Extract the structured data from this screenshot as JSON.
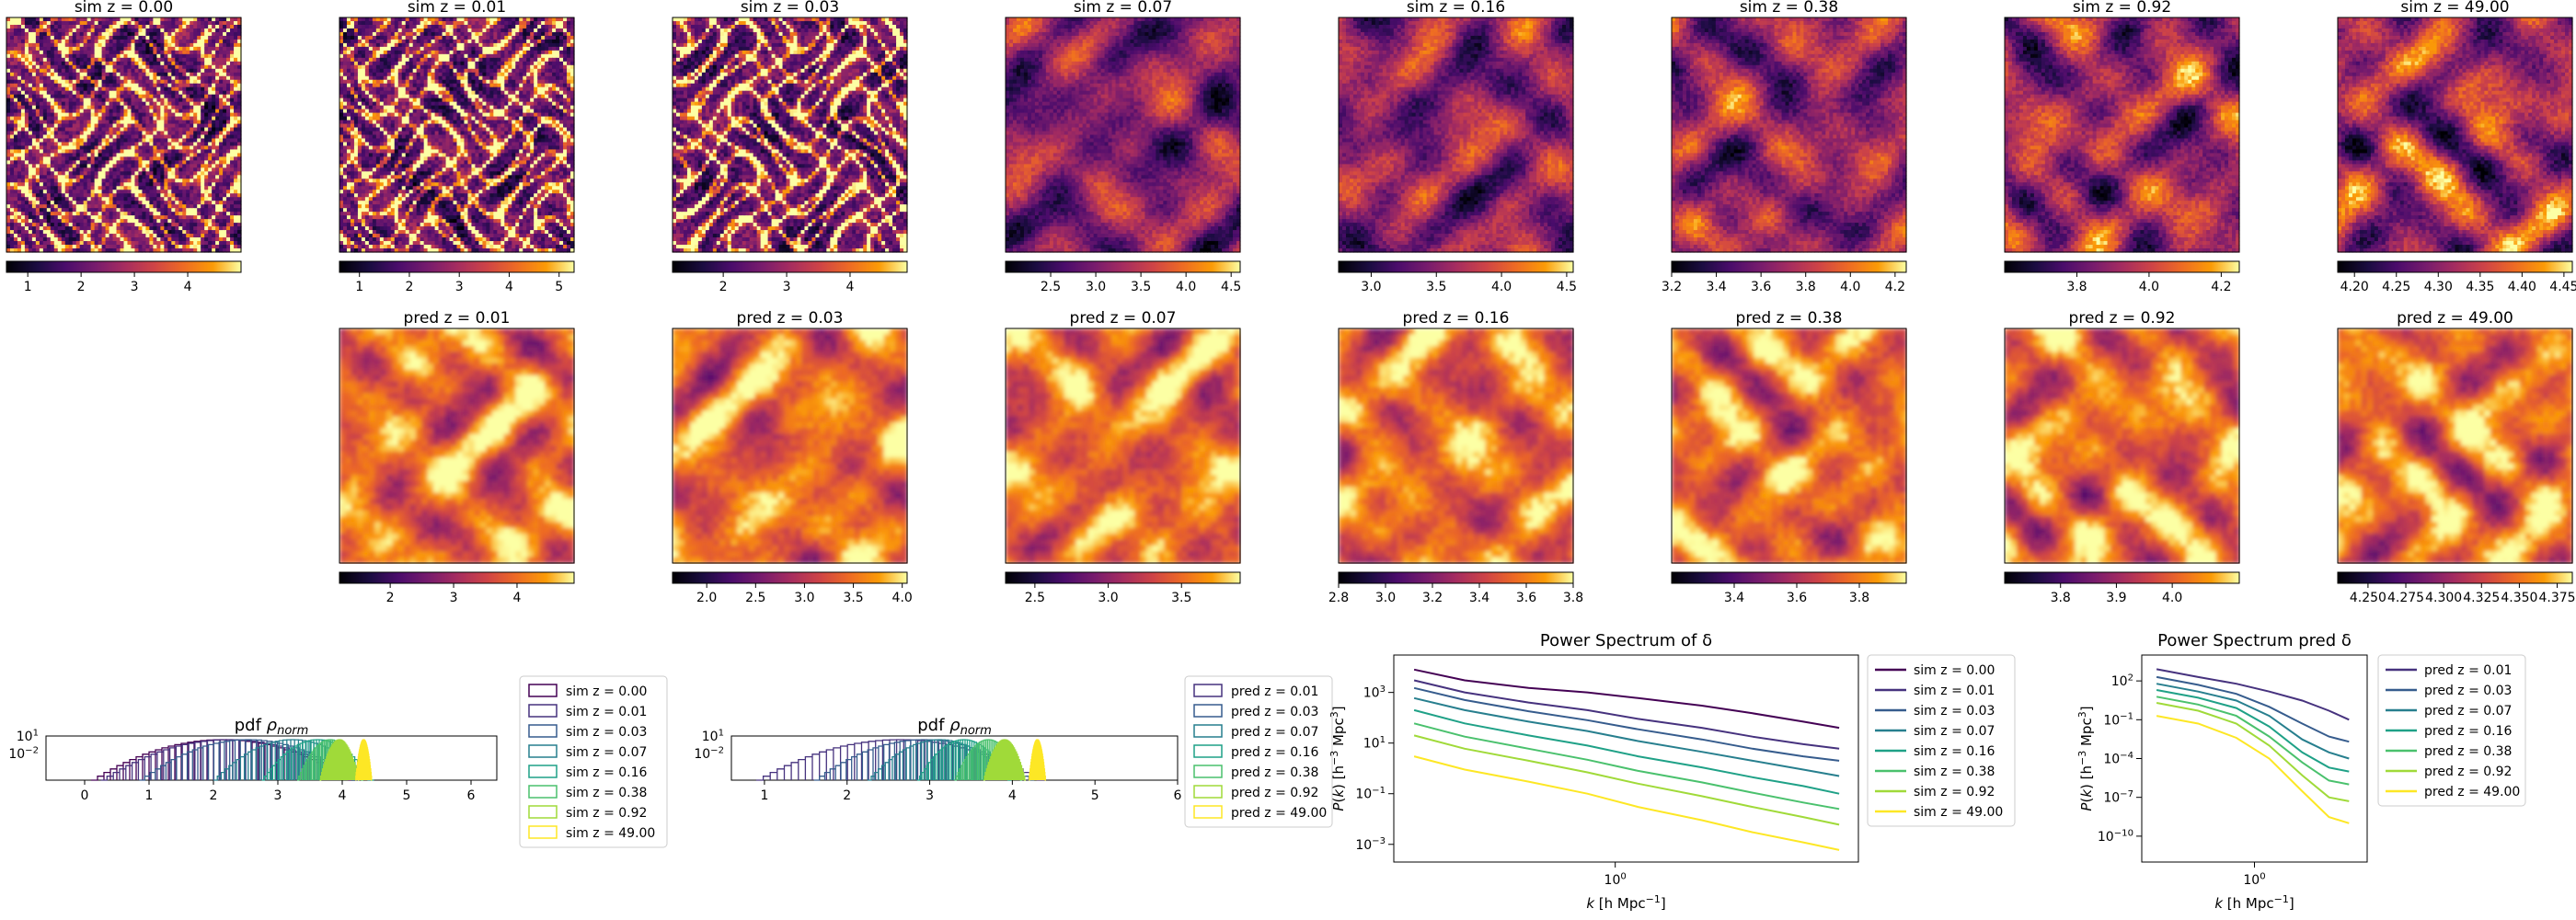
{
  "sim_row": [
    {
      "title": "sim z = 0.00",
      "colorbar": {
        "ticks": [
          "1",
          "2",
          "3",
          "4"
        ],
        "range": [
          0.6,
          5.0
        ]
      }
    },
    {
      "title": "sim z = 0.01",
      "colorbar": {
        "ticks": [
          "1",
          "2",
          "3",
          "4",
          "5"
        ],
        "range": [
          0.6,
          5.3
        ]
      }
    },
    {
      "title": "sim z = 0.03",
      "colorbar": {
        "ticks": [
          "2",
          "3",
          "4"
        ],
        "range": [
          1.2,
          4.9
        ]
      }
    },
    {
      "title": "sim z = 0.07",
      "colorbar": {
        "ticks": [
          "2.5",
          "3.0",
          "3.5",
          "4.0",
          "4.5"
        ],
        "range": [
          2.0,
          4.6
        ]
      }
    },
    {
      "title": "sim z = 0.16",
      "colorbar": {
        "ticks": [
          "3.0",
          "3.5",
          "4.0",
          "4.5"
        ],
        "range": [
          2.75,
          4.55
        ]
      }
    },
    {
      "title": "sim z = 0.38",
      "colorbar": {
        "ticks": [
          "3.2",
          "3.4",
          "3.6",
          "3.8",
          "4.0",
          "4.2"
        ],
        "range": [
          3.2,
          4.25
        ]
      }
    },
    {
      "title": "sim z = 0.92",
      "colorbar": {
        "ticks": [
          "3.8",
          "4.0",
          "4.2"
        ],
        "range": [
          3.6,
          4.25
        ]
      }
    },
    {
      "title": "sim z = 49.00",
      "colorbar": {
        "ticks": [
          "4.20",
          "4.25",
          "4.30",
          "4.35",
          "4.40",
          "4.45"
        ],
        "range": [
          4.18,
          4.46
        ]
      }
    }
  ],
  "pred_row": [
    {
      "title": "pred z = 0.01",
      "colorbar": {
        "ticks": [
          "2",
          "3",
          "4"
        ],
        "range": [
          1.2,
          4.9
        ]
      }
    },
    {
      "title": "pred z = 0.03",
      "colorbar": {
        "ticks": [
          "2.0",
          "2.5",
          "3.0",
          "3.5",
          "4.0"
        ],
        "range": [
          1.65,
          4.05
        ]
      }
    },
    {
      "title": "pred z = 0.07",
      "colorbar": {
        "ticks": [
          "2.5",
          "3.0",
          "3.5"
        ],
        "range": [
          2.3,
          3.9
        ]
      }
    },
    {
      "title": "pred z = 0.16",
      "colorbar": {
        "ticks": [
          "2.8",
          "3.0",
          "3.2",
          "3.4",
          "3.6",
          "3.8"
        ],
        "range": [
          2.8,
          3.8
        ]
      }
    },
    {
      "title": "pred z = 0.38",
      "colorbar": {
        "ticks": [
          "3.4",
          "3.6",
          "3.8"
        ],
        "range": [
          3.2,
          3.95
        ]
      }
    },
    {
      "title": "pred z = 0.92",
      "colorbar": {
        "ticks": [
          "3.8",
          "3.9",
          "4.0"
        ],
        "range": [
          3.7,
          4.12
        ]
      }
    },
    {
      "title": "pred z = 49.00",
      "colorbar": {
        "ticks": [
          "4.250",
          "4.275",
          "4.300",
          "4.325",
          "4.350",
          "4.375"
        ],
        "range": [
          4.23,
          4.385
        ]
      }
    }
  ],
  "chart_data": [
    {
      "type": "histogram",
      "title": "pdf ρnorm",
      "xlim": [
        -0.6,
        6.4
      ],
      "xticks": [
        "0",
        "1",
        "2",
        "3",
        "4",
        "5",
        "6"
      ],
      "yscale": "log",
      "yticks": [
        "10^1",
        "10^-2"
      ],
      "legend_position": "right",
      "series": [
        {
          "name": "sim z = 0.00",
          "center": 2.1,
          "width": 4.0,
          "color": "#440154"
        },
        {
          "name": "sim z = 0.01",
          "center": 2.2,
          "width": 3.9,
          "color": "#46327e"
        },
        {
          "name": "sim z = 0.03",
          "center": 2.5,
          "width": 3.3,
          "color": "#365c8d"
        },
        {
          "name": "sim z = 0.07",
          "center": 3.2,
          "width": 2.4,
          "color": "#277f8e"
        },
        {
          "name": "sim z = 0.16",
          "center": 3.6,
          "width": 1.7,
          "color": "#1fa187"
        },
        {
          "name": "sim z = 0.38",
          "center": 3.8,
          "width": 1.0,
          "color": "#4ac16d"
        },
        {
          "name": "sim z = 0.92",
          "center": 3.95,
          "width": 0.6,
          "color": "#a0da39"
        },
        {
          "name": "sim z = 49.00",
          "center": 4.33,
          "width": 0.25,
          "color": "#fde725"
        }
      ]
    },
    {
      "type": "histogram",
      "title": "pdf ρnorm",
      "xlim": [
        0.6,
        6.0
      ],
      "xticks": [
        "1",
        "2",
        "3",
        "4",
        "5",
        "6"
      ],
      "yscale": "log",
      "yticks": [
        "10^1",
        "10^-2"
      ],
      "legend_position": "right",
      "series": [
        {
          "name": "pred z = 0.01",
          "center": 2.6,
          "width": 3.4,
          "color": "#46327e"
        },
        {
          "name": "pred z = 0.03",
          "center": 2.9,
          "width": 2.6,
          "color": "#365c8d"
        },
        {
          "name": "pred z = 0.07",
          "center": 3.1,
          "width": 1.7,
          "color": "#277f8e"
        },
        {
          "name": "pred z = 0.16",
          "center": 3.4,
          "width": 1.1,
          "color": "#1fa187"
        },
        {
          "name": "pred z = 0.38",
          "center": 3.7,
          "width": 0.8,
          "color": "#4ac16d"
        },
        {
          "name": "pred z = 0.92",
          "center": 3.9,
          "width": 0.5,
          "color": "#a0da39"
        },
        {
          "name": "pred z = 49.00",
          "center": 4.3,
          "width": 0.2,
          "color": "#fde725"
        }
      ]
    },
    {
      "type": "line",
      "title": "Power Spectrum of δ",
      "xlabel": "k [h Mpc^-1]",
      "ylabel": "P(k) [h^-3 Mpc^3]",
      "xscale": "log",
      "yscale": "log",
      "xlim": [
        0.17,
        7.0
      ],
      "ylim": [
        0.0002,
        30000
      ],
      "xticks": [
        "10^0"
      ],
      "yticks": [
        "10^3",
        "10^1",
        "10^-1",
        "10^-3"
      ],
      "legend_position": "right",
      "x": [
        0.2,
        0.3,
        0.5,
        0.8,
        1.2,
        2.0,
        3.0,
        4.5,
        6.0
      ],
      "series": [
        {
          "name": "sim z = 0.00",
          "color": "#440154",
          "values": [
            8000,
            3000,
            1500,
            1000,
            600,
            300,
            150,
            70,
            40
          ]
        },
        {
          "name": "sim z = 0.01",
          "color": "#46327e",
          "values": [
            3000,
            1000,
            400,
            200,
            90,
            40,
            18,
            9,
            6
          ]
        },
        {
          "name": "sim z = 0.03",
          "color": "#365c8d",
          "values": [
            1500,
            500,
            180,
            80,
            35,
            14,
            6,
            3,
            2
          ]
        },
        {
          "name": "sim z = 0.07",
          "color": "#277f8e",
          "values": [
            600,
            200,
            70,
            30,
            12,
            4.5,
            2,
            0.9,
            0.5
          ]
        },
        {
          "name": "sim z = 0.16",
          "color": "#1fa187",
          "values": [
            200,
            60,
            20,
            8,
            3,
            1.1,
            0.45,
            0.2,
            0.1
          ]
        },
        {
          "name": "sim z = 0.38",
          "color": "#4ac16d",
          "values": [
            60,
            18,
            6,
            2.2,
            0.8,
            0.28,
            0.11,
            0.045,
            0.025
          ]
        },
        {
          "name": "sim z = 0.92",
          "color": "#a0da39",
          "values": [
            20,
            6,
            2,
            0.7,
            0.25,
            0.08,
            0.03,
            0.012,
            0.006
          ]
        },
        {
          "name": "sim z = 49.00",
          "color": "#fde725",
          "values": [
            3,
            0.9,
            0.3,
            0.1,
            0.03,
            0.009,
            0.003,
            0.0012,
            0.0006
          ]
        }
      ]
    },
    {
      "type": "line",
      "title": "Power Spectrum pred δ",
      "xlabel": "k [h Mpc^-1]",
      "ylabel": "P(k) [h^-3 Mpc^3]",
      "xscale": "log",
      "yscale": "log",
      "xlim": [
        0.25,
        4.0
      ],
      "ylim": [
        1e-12,
        10000
      ],
      "xticks": [
        "10^0"
      ],
      "yticks": [
        "10^2",
        "10^-1",
        "10^-4",
        "10^-7",
        "10^-10"
      ],
      "legend_position": "right",
      "x": [
        0.3,
        0.5,
        0.8,
        1.2,
        1.8,
        2.5,
        3.2
      ],
      "series": [
        {
          "name": "pred z = 0.01",
          "color": "#46327e",
          "values": [
            800,
            200,
            60,
            15,
            3,
            0.5,
            0.1
          ]
        },
        {
          "name": "pred z = 0.03",
          "color": "#365c8d",
          "values": [
            200,
            50,
            10,
            1,
            0.05,
            0.005,
            0.002
          ]
        },
        {
          "name": "pred z = 0.07",
          "color": "#277f8e",
          "values": [
            60,
            15,
            3,
            0.2,
            0.003,
            0.0003,
            0.0001
          ]
        },
        {
          "name": "pred z = 0.16",
          "color": "#1fa187",
          "values": [
            20,
            5,
            0.8,
            0.03,
            0.0003,
            2e-05,
            1e-05
          ]
        },
        {
          "name": "pred z = 0.38",
          "color": "#4ac16d",
          "values": [
            6,
            1.5,
            0.2,
            0.005,
            5e-05,
            2e-06,
            1e-06
          ]
        },
        {
          "name": "pred z = 0.92",
          "color": "#a0da39",
          "values": [
            2,
            0.5,
            0.05,
            0.001,
            5e-06,
            1e-07,
            5e-08
          ]
        },
        {
          "name": "pred z = 49.00",
          "color": "#fde725",
          "values": [
            0.2,
            0.05,
            0.004,
            0.0001,
            3e-07,
            3e-09,
            1e-09
          ]
        }
      ]
    }
  ]
}
